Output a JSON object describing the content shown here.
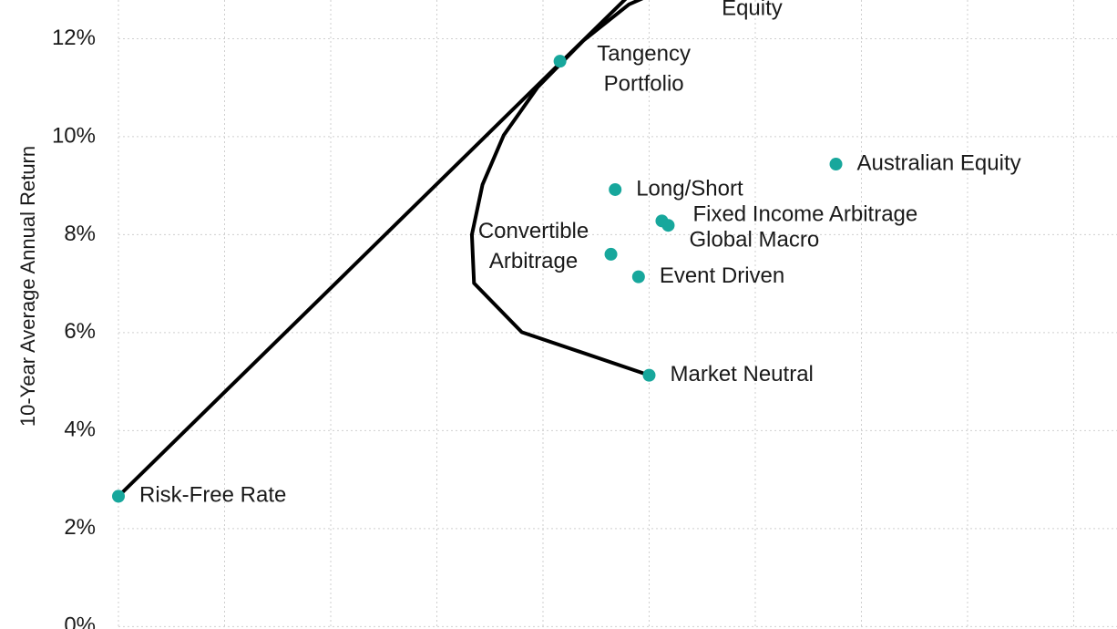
{
  "chart_data": {
    "type": "scatter",
    "y_label": "10-Year Average Annual Return",
    "ylim": [
      -0.05,
      12.79
    ],
    "yticks": [
      {
        "value": 0,
        "label": "0%"
      },
      {
        "value": 2,
        "label": "2%"
      },
      {
        "value": 4,
        "label": "4%"
      },
      {
        "value": 6,
        "label": "6%"
      },
      {
        "value": 8,
        "label": "8%"
      },
      {
        "value": 10,
        "label": "10%"
      },
      {
        "value": 12,
        "label": "12%"
      }
    ],
    "xlim": [
      -1.116,
      9.408
    ],
    "xticks": [
      0,
      1,
      2,
      3,
      4,
      5,
      6,
      7,
      8,
      9
    ],
    "grid": true,
    "color": "#17a79c",
    "points": {
      "x": [
        0,
        4.16,
        5.3,
        6.76,
        4.68,
        5.12,
        5.18,
        4.64,
        4.9,
        5.0
      ],
      "y": [
        2.66,
        11.54,
        13.2,
        9.44,
        8.92,
        8.28,
        8.19,
        7.6,
        7.14,
        5.13
      ],
      "labels": [
        [
          "Risk-Free Rate"
        ],
        [
          "Tangency",
          "Portfolio"
        ],
        [
          "Equity"
        ],
        [
          "Australian Equity"
        ],
        [
          "Long/Short"
        ],
        [
          "Fixed Income Arbitrage"
        ],
        [
          "Global Macro"
        ],
        [
          "Convertible",
          "Arbitrage"
        ],
        [
          "Event Driven"
        ],
        [
          "Market Neutral"
        ]
      ]
    },
    "lines": [
      {
        "color": "#000000",
        "x": [
          0,
          4.81
        ],
        "y": [
          2.66,
          12.88
        ]
      },
      {
        "color": "#000000",
        "x": [
          5.0,
          3.8,
          3.35,
          3.33,
          3.43,
          3.63,
          3.95,
          4.38,
          4.81,
          5.06
        ],
        "y": [
          5.13,
          6.01,
          7.01,
          8.0,
          9.02,
          10.03,
          11.01,
          11.96,
          12.7,
          12.94
        ]
      }
    ]
  }
}
